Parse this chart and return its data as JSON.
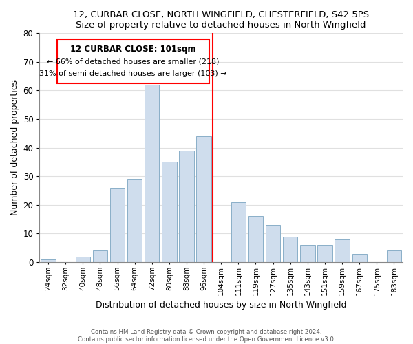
{
  "title": "12, CURBAR CLOSE, NORTH WINGFIELD, CHESTERFIELD, S42 5PS",
  "subtitle": "Size of property relative to detached houses in North Wingfield",
  "xlabel": "Distribution of detached houses by size in North Wingfield",
  "ylabel": "Number of detached properties",
  "footer_line1": "Contains HM Land Registry data © Crown copyright and database right 2024.",
  "footer_line2": "Contains public sector information licensed under the Open Government Licence v3.0.",
  "bin_labels": [
    "24sqm",
    "32sqm",
    "40sqm",
    "48sqm",
    "56sqm",
    "64sqm",
    "72sqm",
    "80sqm",
    "88sqm",
    "96sqm",
    "104sqm",
    "111sqm",
    "119sqm",
    "127sqm",
    "135sqm",
    "143sqm",
    "151sqm",
    "159sqm",
    "167sqm",
    "175sqm",
    "183sqm"
  ],
  "bar_heights": [
    1,
    0,
    2,
    4,
    26,
    29,
    62,
    35,
    39,
    44,
    0,
    21,
    16,
    13,
    9,
    6,
    6,
    8,
    3,
    0,
    4
  ],
  "bar_color": "#cfdded",
  "bar_edge_color": "#8aafc8",
  "vline_color": "red",
  "annotation_title": "12 CURBAR CLOSE: 101sqm",
  "annotation_line1": "← 66% of detached houses are smaller (218)",
  "annotation_line2": "31% of semi-detached houses are larger (103) →",
  "annotation_box_color": "white",
  "annotation_box_edge_color": "red",
  "ylim": [
    0,
    80
  ],
  "yticks": [
    0,
    10,
    20,
    30,
    40,
    50,
    60,
    70,
    80
  ],
  "grid_color": "#e0e0e0"
}
